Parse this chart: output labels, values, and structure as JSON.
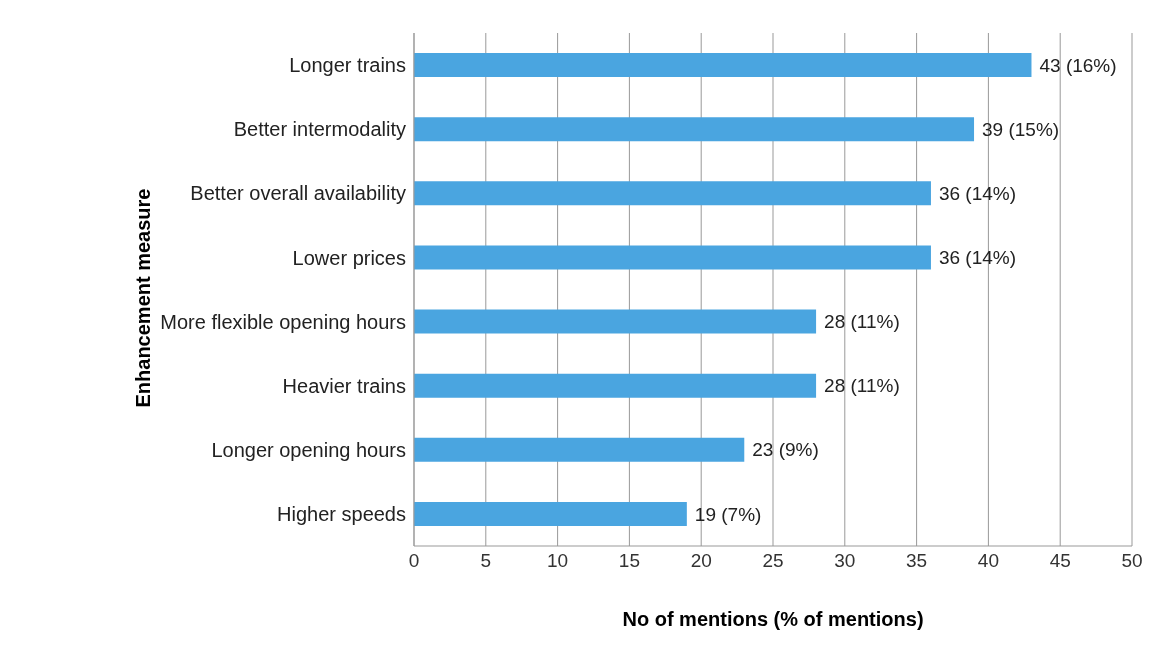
{
  "chart_data": {
    "type": "bar",
    "orientation": "horizontal",
    "xlabel": "No of mentions (% of mentions)",
    "ylabel": "Enhancement measure",
    "categories": [
      "Longer trains",
      "Better intermodality",
      "Better overall availability",
      "Lower prices",
      "More flexible opening hours",
      "Heavier trains",
      "Longer opening hours",
      "Higher speeds"
    ],
    "values": [
      43,
      39,
      36,
      36,
      28,
      28,
      23,
      19
    ],
    "value_labels": [
      "43 (16%)",
      "39 (15%)",
      "36 (14%)",
      "36 (14%)",
      "28 (11%)",
      "28 (11%)",
      "23 (9%)",
      "19 (7%)"
    ],
    "color": "#4aa5e0",
    "xlim": [
      0,
      50
    ],
    "xticks": [
      0,
      5,
      10,
      15,
      20,
      25,
      30,
      35,
      40,
      45,
      50
    ],
    "grid": "x"
  }
}
